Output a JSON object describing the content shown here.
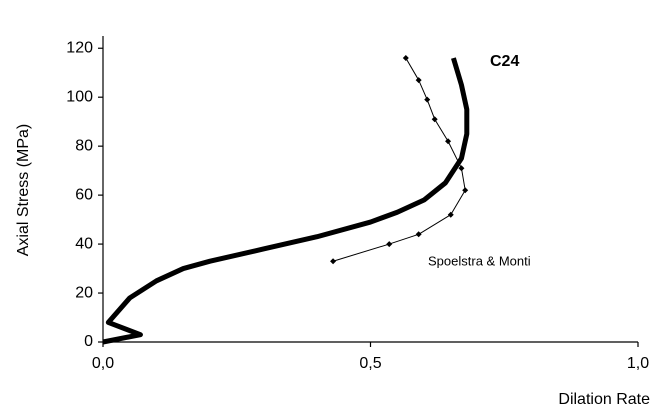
{
  "chart_data": {
    "type": "line",
    "x_label": "Dilation Rate",
    "y_label": "Axial Stress (MPa)",
    "annotations": [
      "C24",
      "Spoelstra & Monti"
    ],
    "xlim": [
      0,
      1
    ],
    "xticks": [
      {
        "value": 0,
        "label": "0,0"
      },
      {
        "value": 0.5,
        "label": "0,5"
      },
      {
        "value": 1,
        "label": "1,0"
      }
    ],
    "ylim": [
      0,
      125
    ],
    "yticks": [
      0,
      20,
      40,
      60,
      80,
      100,
      120
    ],
    "grid": false,
    "series": [
      {
        "name": "C24",
        "color": "#000000",
        "width": 5,
        "markers": false,
        "x": [
          0,
          0.07,
          0.01,
          0.05,
          0.1,
          0.15,
          0.2,
          0.3,
          0.4,
          0.5,
          0.55,
          0.6,
          0.64,
          0.67,
          0.68,
          0.68,
          0.67,
          0.655
        ],
        "values": [
          0,
          3,
          8,
          18,
          25,
          30,
          33,
          38,
          43,
          49,
          53,
          58,
          65,
          75,
          85,
          95,
          105,
          116
        ]
      },
      {
        "name": "Spoelstra & Monti",
        "color": "#000000",
        "width": 1,
        "markers": true,
        "x": [
          0.43,
          0.535,
          0.59,
          0.65,
          0.677,
          0.67,
          0.645,
          0.62,
          0.606,
          0.59,
          0.566
        ],
        "values": [
          33,
          40,
          44,
          52,
          62,
          71,
          82,
          91,
          99,
          107,
          116
        ]
      }
    ]
  }
}
